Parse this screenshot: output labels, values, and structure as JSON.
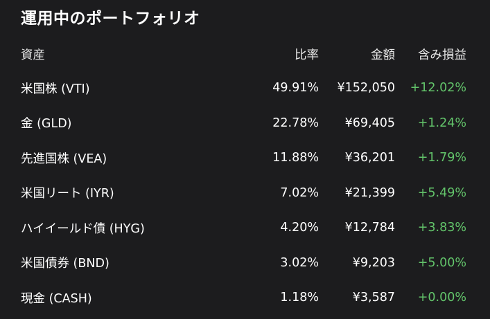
{
  "title": "運用中のポートフォリオ",
  "headers": {
    "asset": "資産",
    "ratio": "比率",
    "amount": "金額",
    "gain": "含み損益"
  },
  "rows": [
    {
      "asset": "米国株 (VTI)",
      "ratio": "49.91%",
      "amount": "¥152,050",
      "gain": "+12.02%"
    },
    {
      "asset": "金 (GLD)",
      "ratio": "22.78%",
      "amount": "¥69,405",
      "gain": "+1.24%"
    },
    {
      "asset": "先進国株 (VEA)",
      "ratio": "11.88%",
      "amount": "¥36,201",
      "gain": "+1.79%"
    },
    {
      "asset": "米国リート (IYR)",
      "ratio": "7.02%",
      "amount": "¥21,399",
      "gain": "+5.49%"
    },
    {
      "asset": "ハイイールド債 (HYG)",
      "ratio": "4.20%",
      "amount": "¥12,784",
      "gain": "+3.83%"
    },
    {
      "asset": "米国債券 (BND)",
      "ratio": "3.02%",
      "amount": "¥9,203",
      "gain": "+5.00%"
    },
    {
      "asset": "現金 (CASH)",
      "ratio": "1.18%",
      "amount": "¥3,587",
      "gain": "+0.00%"
    }
  ],
  "colors": {
    "background": "#1c1c1e",
    "text": "#ffffff",
    "gain_positive": "#63c56b"
  }
}
